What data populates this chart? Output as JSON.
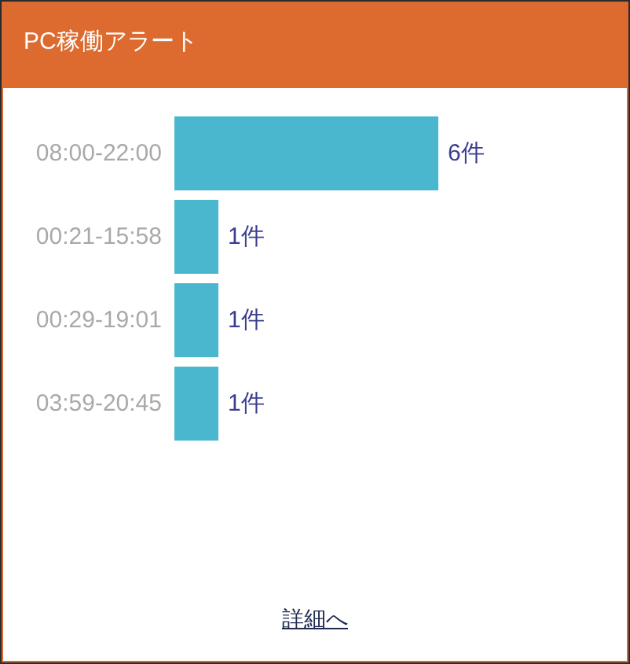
{
  "chart_data": {
    "type": "bar",
    "orientation": "horizontal",
    "title": "PC稼働アラート",
    "categories": [
      "08:00-22:00",
      "00:21-15:58",
      "00:29-19:01",
      "03:59-20:45"
    ],
    "values": [
      6,
      1,
      1,
      1
    ],
    "value_labels": [
      "6件",
      "1件",
      "1件",
      "1件"
    ],
    "color": "#4bb7ce",
    "tick_labels": "y",
    "annotations": [
      "詳細へ"
    ]
  }
}
